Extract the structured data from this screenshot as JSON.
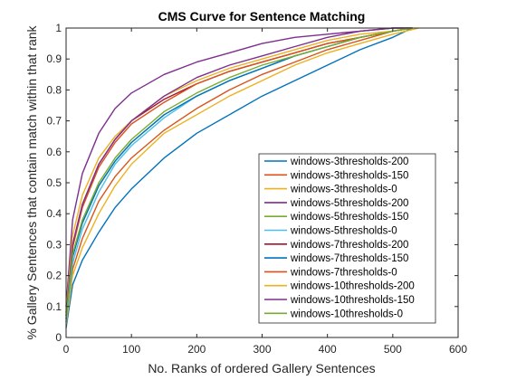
{
  "chart_data": {
    "type": "line",
    "title": "CMS Curve for Sentence Matching",
    "xlabel": "No. Ranks of ordered Gallery Sentences",
    "ylabel": "% Gallery Sentences that contain match within that rank",
    "xlim": [
      0,
      600
    ],
    "ylim": [
      0,
      1
    ],
    "xticks": [
      0,
      100,
      200,
      300,
      400,
      500,
      600
    ],
    "yticks": [
      0,
      0.1,
      0.2,
      0.3,
      0.4,
      0.5,
      0.6,
      0.7,
      0.8,
      0.9,
      1
    ],
    "grid": false,
    "legend_position": "bottom-right",
    "series": [
      {
        "name": "windows-3thresholds-200",
        "color": "#0072BD",
        "x": [
          0,
          10,
          25,
          50,
          75,
          100,
          150,
          200,
          250,
          300,
          350,
          400,
          450,
          500,
          530
        ],
        "y": [
          0.03,
          0.17,
          0.25,
          0.34,
          0.42,
          0.48,
          0.58,
          0.66,
          0.72,
          0.78,
          0.83,
          0.88,
          0.93,
          0.97,
          1.0
        ]
      },
      {
        "name": "windows-3thresholds-150",
        "color": "#D95319",
        "x": [
          0,
          10,
          25,
          50,
          75,
          100,
          150,
          200,
          250,
          300,
          350,
          400,
          450,
          500,
          530
        ],
        "y": [
          0.05,
          0.22,
          0.32,
          0.44,
          0.52,
          0.58,
          0.67,
          0.74,
          0.8,
          0.85,
          0.89,
          0.93,
          0.96,
          0.99,
          1.0
        ]
      },
      {
        "name": "windows-3thresholds-0",
        "color": "#EDB120",
        "x": [
          0,
          10,
          25,
          50,
          75,
          100,
          150,
          200,
          250,
          300,
          350,
          400,
          450,
          500,
          540
        ],
        "y": [
          0.04,
          0.2,
          0.29,
          0.4,
          0.49,
          0.56,
          0.66,
          0.72,
          0.78,
          0.83,
          0.88,
          0.92,
          0.95,
          0.98,
          1.0
        ]
      },
      {
        "name": "windows-5thresholds-200",
        "color": "#7E2F8E",
        "x": [
          0,
          10,
          25,
          50,
          75,
          100,
          150,
          200,
          250,
          300,
          350,
          400,
          450,
          500,
          530
        ],
        "y": [
          0.1,
          0.38,
          0.53,
          0.66,
          0.74,
          0.79,
          0.85,
          0.89,
          0.92,
          0.95,
          0.97,
          0.98,
          0.99,
          1.0,
          1.0
        ]
      },
      {
        "name": "windows-5thresholds-150",
        "color": "#77AC30",
        "x": [
          0,
          10,
          25,
          50,
          75,
          100,
          150,
          200,
          250,
          300,
          350,
          400,
          450,
          500,
          530
        ],
        "y": [
          0.06,
          0.26,
          0.37,
          0.49,
          0.57,
          0.63,
          0.72,
          0.78,
          0.83,
          0.87,
          0.91,
          0.94,
          0.97,
          0.99,
          1.0
        ]
      },
      {
        "name": "windows-5thresholds-0",
        "color": "#4DBEEE",
        "x": [
          0,
          10,
          25,
          50,
          75,
          100,
          150,
          200,
          250,
          300,
          350,
          400,
          450,
          500,
          530
        ],
        "y": [
          0.05,
          0.24,
          0.35,
          0.47,
          0.56,
          0.62,
          0.71,
          0.78,
          0.83,
          0.87,
          0.91,
          0.94,
          0.97,
          0.99,
          1.0
        ]
      },
      {
        "name": "windows-7thresholds-200",
        "color": "#A2142F",
        "x": [
          0,
          10,
          25,
          50,
          75,
          100,
          150,
          200,
          250,
          300,
          350,
          400,
          450,
          500,
          530
        ],
        "y": [
          0.08,
          0.3,
          0.43,
          0.56,
          0.64,
          0.7,
          0.77,
          0.82,
          0.86,
          0.89,
          0.92,
          0.95,
          0.97,
          0.99,
          1.0
        ]
      },
      {
        "name": "windows-7thresholds-150",
        "color": "#0072BD",
        "x": [
          0,
          10,
          25,
          50,
          75,
          100,
          150,
          200,
          250,
          300,
          350,
          400,
          450,
          500,
          530
        ],
        "y": [
          0.06,
          0.26,
          0.37,
          0.49,
          0.57,
          0.63,
          0.72,
          0.78,
          0.83,
          0.87,
          0.91,
          0.94,
          0.97,
          0.99,
          1.0
        ]
      },
      {
        "name": "windows-7thresholds-0",
        "color": "#D95319",
        "x": [
          0,
          10,
          25,
          50,
          75,
          100,
          150,
          200,
          250,
          300,
          350,
          400,
          450,
          500,
          530
        ],
        "y": [
          0.07,
          0.29,
          0.42,
          0.55,
          0.63,
          0.69,
          0.76,
          0.82,
          0.86,
          0.89,
          0.92,
          0.95,
          0.97,
          0.99,
          1.0
        ]
      },
      {
        "name": "windows-10thresholds-200",
        "color": "#EDB120",
        "x": [
          0,
          10,
          25,
          50,
          75,
          100,
          150,
          200,
          250,
          300,
          350,
          400,
          450,
          500,
          530
        ],
        "y": [
          0.08,
          0.33,
          0.46,
          0.58,
          0.65,
          0.7,
          0.78,
          0.83,
          0.87,
          0.9,
          0.93,
          0.96,
          0.98,
          0.99,
          1.0
        ]
      },
      {
        "name": "windows-10thresholds-150",
        "color": "#7E2F8E",
        "x": [
          0,
          10,
          25,
          50,
          75,
          100,
          150,
          200,
          250,
          300,
          350,
          400,
          450,
          500,
          530
        ],
        "y": [
          0.07,
          0.3,
          0.43,
          0.56,
          0.64,
          0.7,
          0.78,
          0.84,
          0.88,
          0.91,
          0.94,
          0.97,
          0.99,
          1.0,
          1.0
        ]
      },
      {
        "name": "windows-10thresholds-0",
        "color": "#77AC30",
        "x": [
          0,
          10,
          25,
          50,
          75,
          100,
          150,
          200,
          250,
          300,
          350,
          400,
          450,
          500,
          530
        ],
        "y": [
          0.06,
          0.27,
          0.38,
          0.5,
          0.58,
          0.64,
          0.73,
          0.79,
          0.84,
          0.88,
          0.91,
          0.94,
          0.97,
          0.99,
          1.0
        ]
      }
    ]
  }
}
